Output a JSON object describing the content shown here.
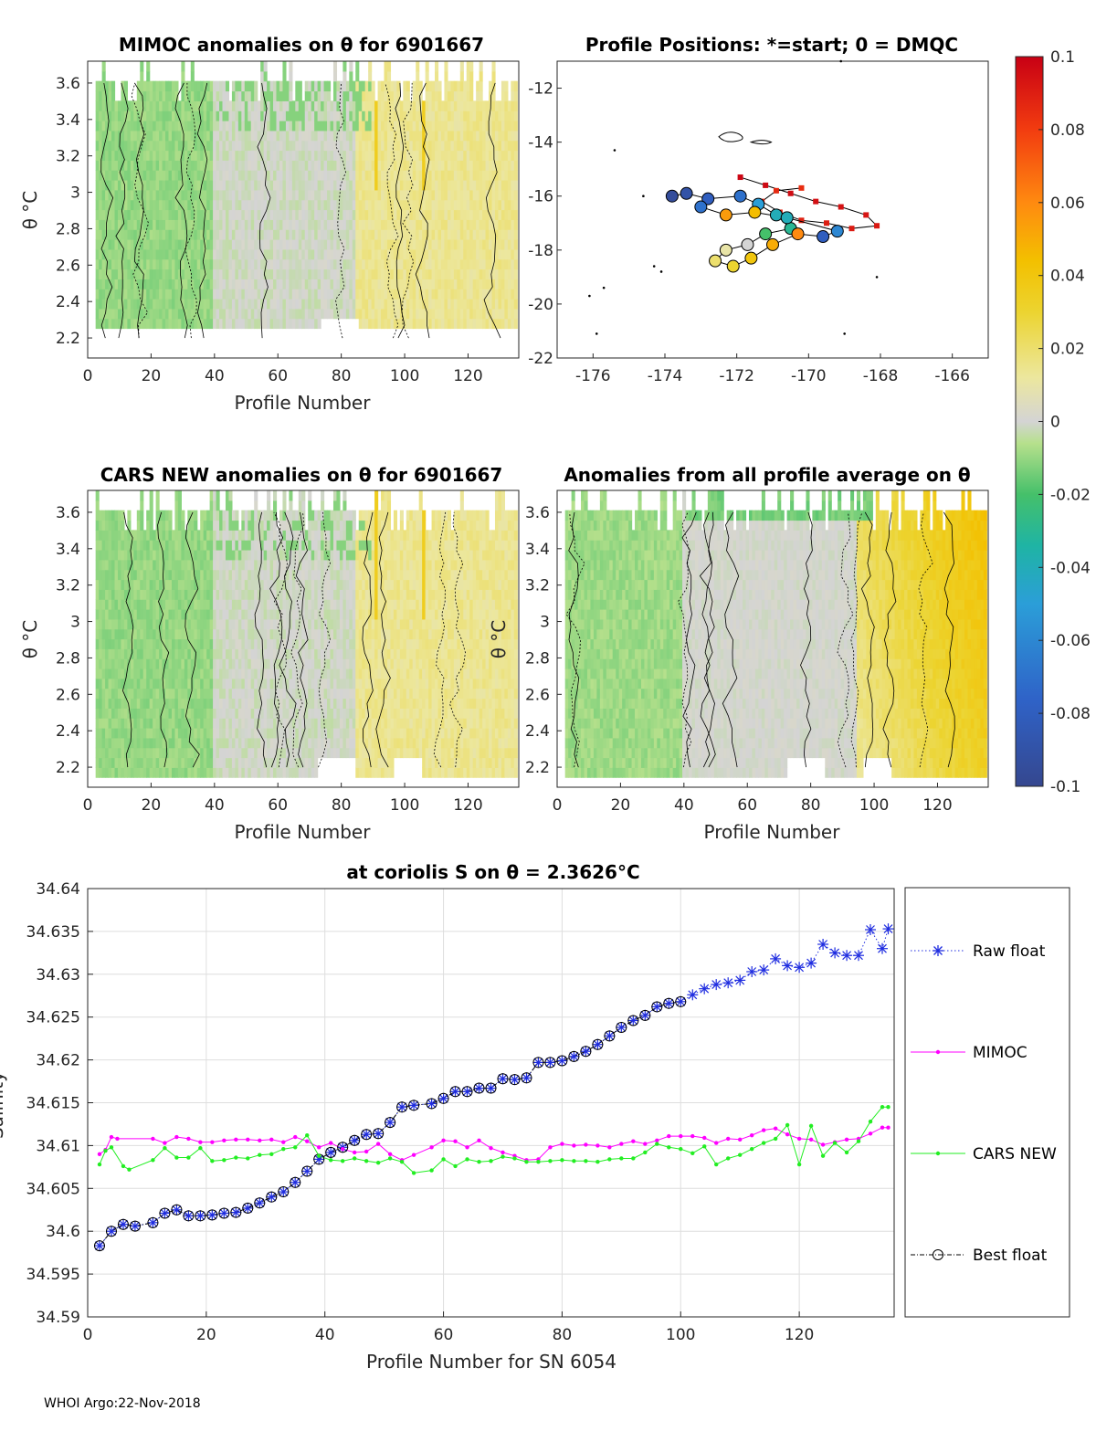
{
  "footer": "WHOI Argo:22-Nov-2018",
  "colors": {
    "raw": "#1f2de0",
    "mimoc": "#ff00ff",
    "cars": "#22ee22",
    "best": "#000000",
    "axis": "#262626",
    "grid": "#dedede"
  },
  "colorbar": {
    "ticks": [
      "0.1",
      "0.08",
      "0.06",
      "0.04",
      "0.02",
      "0",
      "-0.02",
      "-0.04",
      "-0.06",
      "-0.08",
      "-0.1"
    ],
    "range": [
      -0.1,
      0.1
    ]
  },
  "chart_data": [
    {
      "type": "heatmap",
      "id": "mimoc",
      "title": "MIMOC anomalies on θ  for 6901667",
      "xlabel": "Profile Number",
      "ylabel": "θ °C",
      "xticks": [
        "0",
        "20",
        "40",
        "60",
        "80",
        "100",
        "120"
      ],
      "yticks": [
        "3.6",
        "3.4",
        "3.2",
        "3",
        "2.8",
        "2.6",
        "2.4",
        "2.2"
      ],
      "xlim": [
        0,
        136
      ],
      "ylim": [
        2.09,
        3.72
      ]
    },
    {
      "type": "scatter",
      "id": "positions",
      "title": "Profile Positions: *=start; 0 = DMQC",
      "xticks": [
        "-176",
        "-174",
        "-172",
        "-170",
        "-168",
        "-166"
      ],
      "yticks": [
        "-12",
        "-14",
        "-16",
        "-18",
        "-20",
        "-22"
      ],
      "xlim": [
        -177.0,
        -165.0
      ],
      "ylim": [
        -22,
        -11
      ],
      "track_dmqc": [
        [
          -173.8,
          -16.0
        ],
        [
          -173.4,
          -15.9
        ],
        [
          -172.8,
          -16.1
        ],
        [
          -171.9,
          -16.0
        ],
        [
          -171.4,
          -16.3
        ],
        [
          -170.9,
          -16.7
        ],
        [
          -170.5,
          -17.2
        ],
        [
          -171.2,
          -17.4
        ],
        [
          -171.7,
          -17.8
        ],
        [
          -172.3,
          -18.0
        ],
        [
          -172.6,
          -18.4
        ],
        [
          -172.1,
          -18.6
        ],
        [
          -171.6,
          -18.3
        ],
        [
          -171.0,
          -17.8
        ],
        [
          -170.3,
          -17.4
        ],
        [
          -169.6,
          -17.5
        ],
        [
          -169.2,
          -17.3
        ],
        [
          -170.6,
          -16.8
        ],
        [
          -171.5,
          -16.6
        ],
        [
          -172.3,
          -16.7
        ],
        [
          -173.0,
          -16.4
        ]
      ],
      "track_raw": [
        [
          -171.9,
          -15.3
        ],
        [
          -171.2,
          -15.6
        ],
        [
          -170.5,
          -15.9
        ],
        [
          -169.8,
          -16.2
        ],
        [
          -169.1,
          -16.4
        ],
        [
          -168.4,
          -16.7
        ],
        [
          -168.1,
          -17.1
        ],
        [
          -168.8,
          -17.2
        ],
        [
          -169.5,
          -17.0
        ],
        [
          -170.2,
          -16.9
        ],
        [
          -170.8,
          -16.6
        ],
        [
          -171.3,
          -16.2
        ],
        [
          -170.9,
          -15.8
        ],
        [
          -170.2,
          -15.7
        ]
      ],
      "raw_values": [
        0.098,
        0.097,
        0.096,
        0.095,
        0.094,
        0.093,
        0.092,
        0.091,
        0.09,
        0.089,
        0.088,
        0.087,
        0.086,
        0.085
      ],
      "dmqc_values": [
        -0.095,
        -0.09,
        -0.08,
        -0.07,
        -0.05,
        -0.04,
        -0.03,
        -0.02,
        0.0,
        0.01,
        0.02,
        0.03,
        0.04,
        0.05,
        0.06,
        -0.08,
        -0.06,
        -0.04,
        0.045,
        0.055,
        -0.07
      ]
    },
    {
      "type": "heatmap",
      "id": "cars",
      "title": "CARS NEW anomalies on θ for 6901667",
      "xlabel": "Profile Number",
      "ylabel": "θ °C",
      "xticks": [
        "0",
        "20",
        "40",
        "60",
        "80",
        "100",
        "120"
      ],
      "yticks": [
        "3.6",
        "3.4",
        "3.2",
        "3",
        "2.8",
        "2.6",
        "2.4",
        "2.2"
      ],
      "xlim": [
        0,
        136
      ],
      "ylim": [
        2.09,
        3.72
      ]
    },
    {
      "type": "heatmap",
      "id": "allavg",
      "title": "Anomalies from all profile average on θ",
      "xlabel": "Profile Number",
      "ylabel": "θ °C",
      "xticks": [
        "0",
        "20",
        "40",
        "60",
        "80",
        "100",
        "120"
      ],
      "yticks": [
        "3.6",
        "3.4",
        "3.2",
        "3",
        "2.8",
        "2.6",
        "2.4",
        "2.2"
      ],
      "xlim": [
        0,
        136
      ],
      "ylim": [
        2.09,
        3.72
      ]
    },
    {
      "type": "line",
      "id": "salinity",
      "title": "at coriolis S on θ = 2.3626°C",
      "xlabel": "Profile Number for SN 6054",
      "ylabel": "Salinity",
      "xlim": [
        0,
        136
      ],
      "ylim": [
        34.59,
        34.64
      ],
      "xticks": [
        "0",
        "20",
        "40",
        "60",
        "80",
        "100",
        "120"
      ],
      "yticks": [
        "34.64",
        "34.635",
        "34.63",
        "34.625",
        "34.62",
        "34.615",
        "34.61",
        "34.605",
        "34.6",
        "34.595",
        "34.59"
      ],
      "legend": [
        "Raw float",
        "MIMOC",
        "CARS NEW",
        "Best float"
      ],
      "best_float": {
        "x": [
          2,
          4,
          6,
          8,
          11,
          13,
          15,
          17,
          19,
          21,
          23,
          25,
          27,
          29,
          31,
          33,
          35,
          37,
          39,
          41,
          43,
          45,
          47,
          49,
          51,
          53,
          55,
          58,
          60,
          62,
          64,
          66,
          68,
          70,
          72,
          74,
          76,
          78,
          80,
          82,
          84,
          86,
          88,
          90,
          92,
          94,
          96,
          98,
          100
        ],
        "y": [
          34.5983,
          34.6,
          34.6008,
          34.6006,
          34.601,
          34.6021,
          34.6025,
          34.6018,
          34.6018,
          34.6019,
          34.6021,
          34.6022,
          34.6027,
          34.6033,
          34.604,
          34.6046,
          34.6057,
          34.607,
          34.6084,
          34.6092,
          34.6098,
          34.6106,
          34.6113,
          34.6114,
          34.6127,
          34.6145,
          34.6147,
          34.6149,
          34.6155,
          34.6163,
          34.6163,
          34.6167,
          34.6167,
          34.6178,
          34.6177,
          34.6179,
          34.6197,
          34.6197,
          34.6199,
          34.6204,
          34.621,
          34.6218,
          34.6228,
          34.6238,
          34.6246,
          34.6252,
          34.6262,
          34.6266,
          34.6268
        ]
      },
      "raw_float": {
        "x": [
          2,
          4,
          6,
          8,
          11,
          13,
          15,
          17,
          19,
          21,
          23,
          25,
          27,
          29,
          31,
          33,
          35,
          37,
          39,
          41,
          43,
          45,
          47,
          49,
          51,
          53,
          55,
          58,
          60,
          62,
          64,
          66,
          68,
          70,
          72,
          74,
          76,
          78,
          80,
          82,
          84,
          86,
          88,
          90,
          92,
          94,
          96,
          98,
          100,
          102,
          104,
          106,
          108,
          110,
          112,
          114,
          116,
          118,
          120,
          122,
          124,
          126,
          128,
          130,
          132,
          134,
          135
        ],
        "y": [
          34.5983,
          34.6,
          34.6008,
          34.6006,
          34.601,
          34.6021,
          34.6025,
          34.6018,
          34.6018,
          34.6019,
          34.6021,
          34.6022,
          34.6027,
          34.6033,
          34.604,
          34.6046,
          34.6057,
          34.607,
          34.6084,
          34.6092,
          34.6098,
          34.6106,
          34.6113,
          34.6114,
          34.6127,
          34.6145,
          34.6147,
          34.6149,
          34.6155,
          34.6163,
          34.6163,
          34.6167,
          34.6167,
          34.6178,
          34.6177,
          34.6179,
          34.6197,
          34.6197,
          34.6199,
          34.6204,
          34.621,
          34.6218,
          34.6228,
          34.6238,
          34.6246,
          34.6252,
          34.6262,
          34.6266,
          34.6268,
          34.6276,
          34.6283,
          34.6288,
          34.629,
          34.6293,
          34.6303,
          34.6305,
          34.6318,
          34.631,
          34.6308,
          34.6313,
          34.6335,
          34.6325,
          34.6322,
          34.6322,
          34.6352,
          34.633,
          34.6353
        ]
      },
      "mimoc": {
        "x": [
          2,
          3,
          4,
          5,
          11,
          13,
          15,
          17,
          19,
          21,
          23,
          25,
          27,
          29,
          31,
          33,
          35,
          37,
          39,
          41,
          43,
          45,
          47,
          49,
          51,
          53,
          55,
          58,
          60,
          62,
          64,
          66,
          68,
          70,
          72,
          74,
          76,
          78,
          80,
          82,
          84,
          86,
          88,
          90,
          92,
          94,
          96,
          98,
          100,
          102,
          104,
          106,
          108,
          110,
          112,
          114,
          116,
          118,
          120,
          122,
          124,
          126,
          128,
          130,
          132,
          134,
          135
        ],
        "y": [
          34.609,
          34.6095,
          34.611,
          34.6108,
          34.6108,
          34.6103,
          34.611,
          34.6108,
          34.6104,
          34.6104,
          34.6106,
          34.6107,
          34.6107,
          34.6106,
          34.6107,
          34.6104,
          34.611,
          34.6105,
          34.6098,
          34.6103,
          34.6096,
          34.6092,
          34.6093,
          34.6102,
          34.609,
          34.6083,
          34.6089,
          34.6098,
          34.6106,
          34.6105,
          34.6098,
          34.6106,
          34.6097,
          34.6092,
          34.6088,
          34.6083,
          34.6084,
          34.6098,
          34.6102,
          34.61,
          34.6101,
          34.61,
          34.6098,
          34.6102,
          34.6105,
          34.6102,
          34.6106,
          34.6111,
          34.6111,
          34.6111,
          34.6109,
          34.6103,
          34.6108,
          34.6107,
          34.6112,
          34.6118,
          34.612,
          34.6113,
          34.6108,
          34.6107,
          34.6101,
          34.6104,
          34.6107,
          34.6108,
          34.6114,
          34.6121,
          34.6121
        ]
      },
      "cars_new": {
        "x": [
          2,
          3,
          4,
          6,
          7,
          11,
          13,
          15,
          17,
          19,
          21,
          23,
          25,
          27,
          29,
          31,
          33,
          35,
          37,
          39,
          41,
          43,
          45,
          47,
          49,
          51,
          53,
          55,
          58,
          60,
          62,
          64,
          66,
          68,
          70,
          72,
          74,
          76,
          78,
          80,
          82,
          84,
          86,
          88,
          90,
          92,
          94,
          96,
          98,
          100,
          102,
          104,
          106,
          108,
          110,
          112,
          114,
          116,
          118,
          120,
          122,
          124,
          126,
          128,
          130,
          132,
          134,
          135
        ],
        "y": [
          34.6078,
          34.6094,
          34.6098,
          34.6076,
          34.6072,
          34.6083,
          34.6097,
          34.6086,
          34.6086,
          34.6097,
          34.6082,
          34.6083,
          34.6086,
          34.6085,
          34.6089,
          34.609,
          34.6096,
          34.6098,
          34.6112,
          34.6088,
          34.6083,
          34.6082,
          34.6085,
          34.6082,
          34.608,
          34.6085,
          34.6081,
          34.6068,
          34.6071,
          34.6084,
          34.6076,
          34.6084,
          34.6081,
          34.6082,
          34.6087,
          34.6085,
          34.6081,
          34.6081,
          34.6082,
          34.6083,
          34.6082,
          34.6082,
          34.6081,
          34.6084,
          34.6085,
          34.6085,
          34.6092,
          34.6102,
          34.6098,
          34.6096,
          34.6091,
          34.6099,
          34.6078,
          34.6085,
          34.6089,
          34.6096,
          34.6103,
          34.6108,
          34.6124,
          34.6078,
          34.6123,
          34.6088,
          34.6103,
          34.6092,
          34.6105,
          34.6128,
          34.6145,
          34.6145
        ]
      }
    }
  ]
}
